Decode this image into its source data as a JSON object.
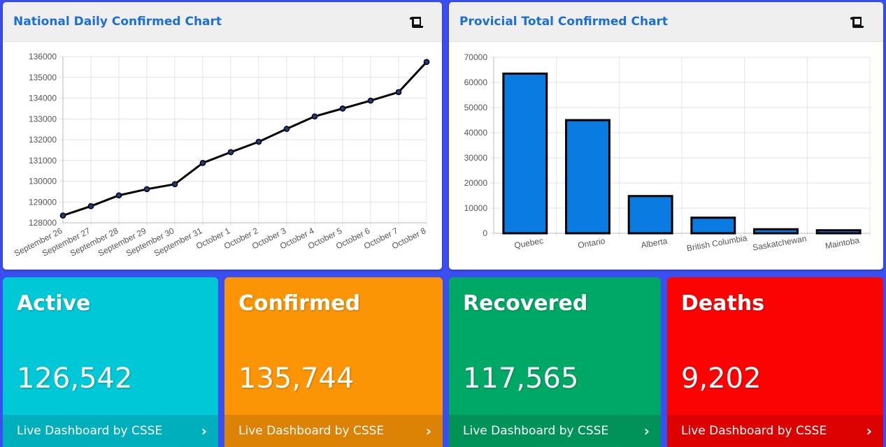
{
  "charts": [
    {
      "header": "National Daily Confirmed Chart",
      "icon": "scroll-icon",
      "chart_data": {
        "type": "line",
        "title": "National Daily Confirmed Chart",
        "categories": [
          "September 26",
          "September 27",
          "September 28",
          "September 29",
          "September 30",
          "September 31",
          "October 1",
          "October 2",
          "October 3",
          "October 4",
          "October 5",
          "October 6",
          "October 7",
          "October 8"
        ],
        "values": [
          128350,
          128800,
          129320,
          129620,
          129860,
          130880,
          131400,
          131900,
          132520,
          133120,
          133500,
          133880,
          134290,
          135740
        ],
        "ylim": [
          128000,
          136000
        ],
        "yticks": [
          128000,
          129000,
          130000,
          131000,
          132000,
          133000,
          134000,
          135000,
          136000
        ],
        "grid": true,
        "line_color": "#000000",
        "point_color": "#1a3a8a"
      }
    },
    {
      "header": "Provicial Total Confirmed Chart",
      "icon": "scroll-icon",
      "chart_data": {
        "type": "bar",
        "title": "Provicial Total Confirmed Chart",
        "categories": [
          "Quebec",
          "Ontario",
          "Alberta",
          "British Columbia",
          "Saskatchewan",
          "Maintoba"
        ],
        "values": [
          63500,
          45000,
          14800,
          6200,
          1600,
          1200
        ],
        "ylim": [
          0,
          70000
        ],
        "yticks": [
          0,
          10000,
          20000,
          30000,
          40000,
          50000,
          60000,
          70000
        ],
        "grid": true,
        "bar_color": "#0a7be0",
        "bar_border": "#000000"
      }
    }
  ],
  "stats": [
    {
      "title": "Active",
      "value": "126,542",
      "link": "Live Dashboard by CSSE",
      "color": "#00c8d6"
    },
    {
      "title": "Confirmed",
      "value": "135,744",
      "link": "Live Dashboard by CSSE",
      "color": "#fb9505"
    },
    {
      "title": "Recovered",
      "value": "117,565",
      "link": "Live Dashboard by CSSE",
      "color": "#00a865"
    },
    {
      "title": "Deaths",
      "value": "9,202",
      "link": "Live Dashboard by CSSE",
      "color": "#fc0303"
    }
  ]
}
